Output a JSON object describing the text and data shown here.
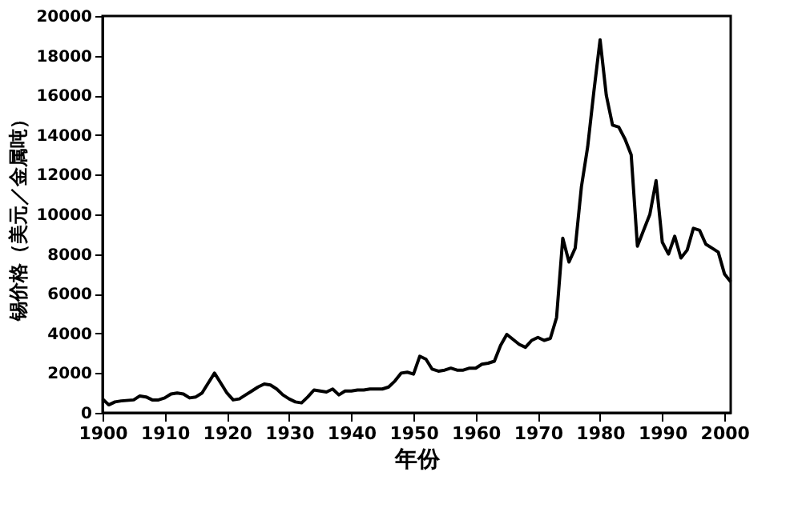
{
  "chart_data": {
    "type": "line",
    "xlabel": "年份",
    "ylabel": "锡价格（美元／金属吨）",
    "x": [
      1900,
      1901,
      1902,
      1903,
      1905,
      1906,
      1907,
      1908,
      1909,
      1910,
      1911,
      1912,
      1913,
      1914,
      1915,
      1916,
      1917,
      1918,
      1919,
      1920,
      1921,
      1922,
      1923,
      1924,
      1925,
      1926,
      1927,
      1928,
      1929,
      1930,
      1931,
      1932,
      1933,
      1934,
      1935,
      1936,
      1937,
      1938,
      1939,
      1940,
      1941,
      1942,
      1943,
      1944,
      1945,
      1946,
      1947,
      1948,
      1949,
      1950,
      1951,
      1952,
      1953,
      1954,
      1955,
      1956,
      1957,
      1958,
      1959,
      1960,
      1961,
      1962,
      1963,
      1964,
      1965,
      1966,
      1967,
      1968,
      1969,
      1970,
      1971,
      1972,
      1973,
      1974,
      1975,
      1976,
      1977,
      1978,
      1979,
      1980,
      1981,
      1982,
      1983,
      1984,
      1985,
      1986,
      1987,
      1988,
      1989,
      1990,
      1991,
      1992,
      1993,
      1994,
      1995,
      1996,
      1997,
      1998,
      1999,
      2000,
      2001
    ],
    "series": [
      {
        "color": "#000000",
        "values": [
          700,
          400,
          550,
          600,
          650,
          850,
          800,
          650,
          650,
          750,
          950,
          1000,
          950,
          750,
          800,
          1000,
          1500,
          2000,
          1500,
          1000,
          650,
          700,
          900,
          1100,
          1300,
          1450,
          1400,
          1200,
          900,
          700,
          550,
          500,
          800,
          1150,
          1100,
          1050,
          1200,
          900,
          1100,
          1100,
          1150,
          1150,
          1200,
          1200,
          1200,
          1300,
          1600,
          2000,
          2050,
          1950,
          2850,
          2700,
          2200,
          2100,
          2150,
          2250,
          2150,
          2150,
          2250,
          2250,
          2450,
          2500,
          2600,
          3400,
          3950,
          3700,
          3450,
          3300,
          3650,
          3800,
          3650,
          3750,
          4800,
          8800,
          7600,
          8300,
          11400,
          13400,
          16200,
          18800,
          16000,
          14500,
          14400,
          13800,
          13000,
          8400,
          9200,
          10000,
          11700,
          8600,
          8000,
          8900,
          7800,
          8200,
          9300,
          9200,
          8500,
          8300,
          8100,
          7000,
          6600
        ]
      }
    ],
    "xlim": [
      1900,
      2001
    ],
    "xticks": [
      1900,
      1910,
      1920,
      1930,
      1940,
      1950,
      1960,
      1970,
      1980,
      1990,
      2000
    ],
    "ylim": [
      0,
      20000
    ],
    "yticks": [
      0,
      2000,
      4000,
      6000,
      8000,
      10000,
      12000,
      14000,
      16000,
      18000,
      20000
    ],
    "grid": false,
    "marker": "none",
    "line_style": "solid"
  }
}
